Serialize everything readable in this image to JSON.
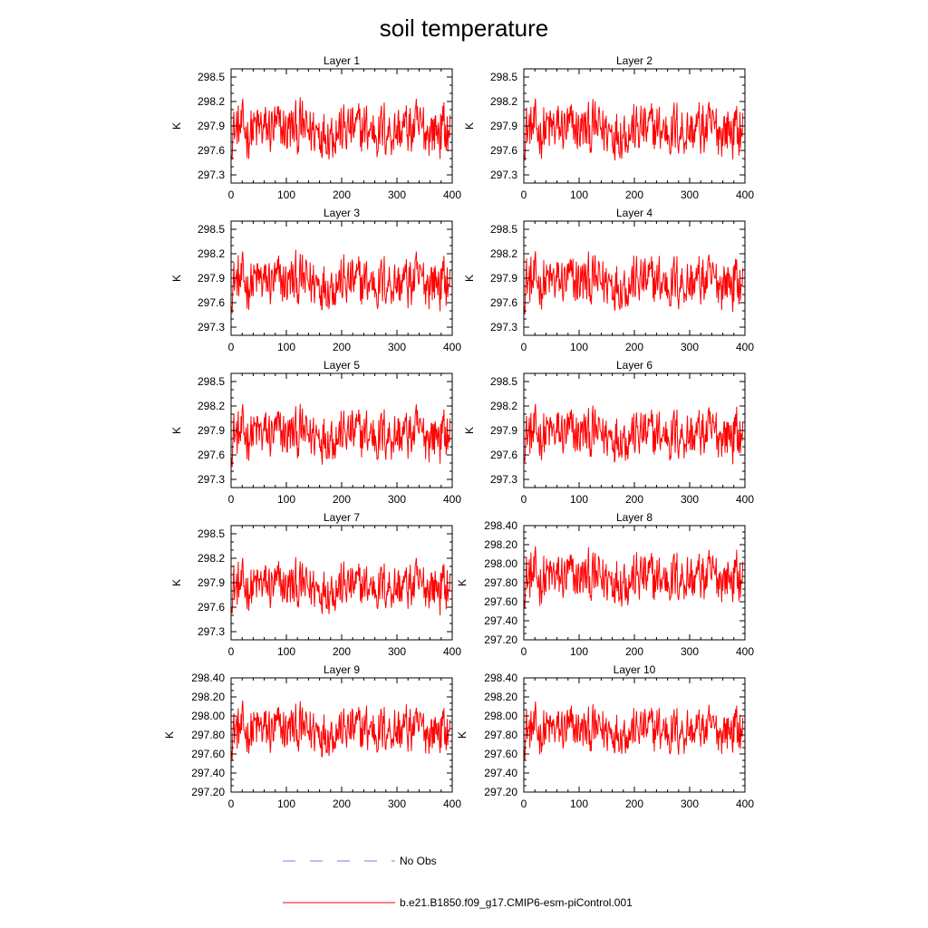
{
  "chart_data": {
    "type": "line",
    "title": "soil temperature",
    "xlim": [
      0,
      400
    ],
    "x_ticks": [
      "0",
      "100",
      "200",
      "300",
      "400"
    ],
    "x_count": 396,
    "grid": false,
    "legend_placement": "bottom-center",
    "legend": [
      {
        "label": "No Obs",
        "color": "#7a7af0",
        "dash": true
      },
      {
        "label": "b.e21.B1850.f09_g17.CMIP6-esm-piControl.001",
        "color": "#ff0000",
        "dash": false
      }
    ],
    "series_color": "#ff0000",
    "panels": [
      {
        "title": "Layer 1",
        "ylabel": "K",
        "ylim": [
          297.2,
          298.6
        ],
        "yticks": [
          "297.3",
          "297.6",
          "297.9",
          "298.2",
          "298.5"
        ],
        "mean": 297.85,
        "amp": 0.33
      },
      {
        "title": "Layer 2",
        "ylabel": "K",
        "ylim": [
          297.2,
          298.6
        ],
        "yticks": [
          "297.3",
          "297.6",
          "297.9",
          "298.2",
          "298.5"
        ],
        "mean": 297.85,
        "amp": 0.33
      },
      {
        "title": "Layer 3",
        "ylabel": "K",
        "ylim": [
          297.2,
          298.6
        ],
        "yticks": [
          "297.3",
          "297.6",
          "297.9",
          "298.2",
          "298.5"
        ],
        "mean": 297.85,
        "amp": 0.32
      },
      {
        "title": "Layer 4",
        "ylabel": "K",
        "ylim": [
          297.2,
          298.6
        ],
        "yticks": [
          "297.3",
          "297.6",
          "297.9",
          "298.2",
          "298.5"
        ],
        "mean": 297.85,
        "amp": 0.32
      },
      {
        "title": "Layer 5",
        "ylabel": "K",
        "ylim": [
          297.2,
          298.6
        ],
        "yticks": [
          "297.3",
          "297.6",
          "297.9",
          "298.2",
          "298.5"
        ],
        "mean": 297.85,
        "amp": 0.31
      },
      {
        "title": "Layer 6",
        "ylabel": "K",
        "ylim": [
          297.2,
          298.6
        ],
        "yticks": [
          "297.3",
          "297.6",
          "297.9",
          "298.2",
          "298.5"
        ],
        "mean": 297.85,
        "amp": 0.31
      },
      {
        "title": "Layer 7",
        "ylabel": "K",
        "ylim": [
          297.2,
          298.6
        ],
        "yticks": [
          "297.3",
          "297.6",
          "297.9",
          "298.2",
          "298.5"
        ],
        "mean": 297.85,
        "amp": 0.29
      },
      {
        "title": "Layer 8",
        "ylabel": "K",
        "ylim": [
          297.2,
          298.4
        ],
        "yticks": [
          "297.20",
          "297.40",
          "297.60",
          "297.80",
          "298.00",
          "298.20",
          "298.40"
        ],
        "mean": 297.85,
        "amp": 0.27
      },
      {
        "title": "Layer 9",
        "ylabel": "K",
        "ylim": [
          297.2,
          298.4
        ],
        "yticks": [
          "297.20",
          "297.40",
          "297.60",
          "297.80",
          "298.00",
          "298.20",
          "298.40"
        ],
        "mean": 297.85,
        "amp": 0.25
      },
      {
        "title": "Layer 10",
        "ylabel": "K",
        "ylim": [
          297.2,
          298.4
        ],
        "yticks": [
          "297.20",
          "297.40",
          "297.60",
          "297.80",
          "298.00",
          "298.20",
          "298.40"
        ],
        "mean": 297.85,
        "amp": 0.24
      }
    ]
  }
}
